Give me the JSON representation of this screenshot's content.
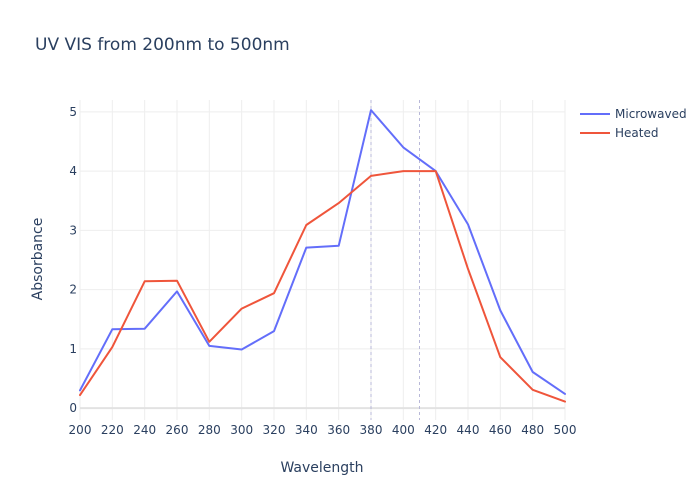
{
  "chart_data": {
    "type": "line",
    "title": "UV VIS from 200nm to 500nm",
    "xlabel": "Wavelength",
    "ylabel": "Absorbance",
    "x": [
      200,
      220,
      240,
      260,
      280,
      300,
      320,
      340,
      360,
      380,
      400,
      420,
      440,
      460,
      480,
      500
    ],
    "xlim": [
      200,
      500
    ],
    "ylim": [
      -0.2,
      5.2
    ],
    "xticks": [
      200,
      220,
      240,
      260,
      280,
      300,
      320,
      340,
      360,
      380,
      400,
      420,
      440,
      460,
      480,
      500
    ],
    "yticks": [
      0,
      1,
      2,
      3,
      4,
      5
    ],
    "grid": true,
    "legend_position": "top-right",
    "vertical_reference_lines": [
      380,
      410
    ],
    "series": [
      {
        "name": "Microwaved",
        "color": "#636efa",
        "values": [
          0.3,
          1.33,
          1.34,
          1.97,
          1.05,
          0.99,
          1.3,
          2.71,
          2.74,
          5.03,
          4.4,
          4.0,
          3.1,
          1.65,
          0.61,
          0.24
        ]
      },
      {
        "name": "Heated",
        "color": "#ef553b",
        "values": [
          0.22,
          1.03,
          2.14,
          2.15,
          1.12,
          1.68,
          1.94,
          3.09,
          3.46,
          3.92,
          4.0,
          4.0,
          2.35,
          0.86,
          0.31,
          0.11
        ]
      }
    ]
  }
}
